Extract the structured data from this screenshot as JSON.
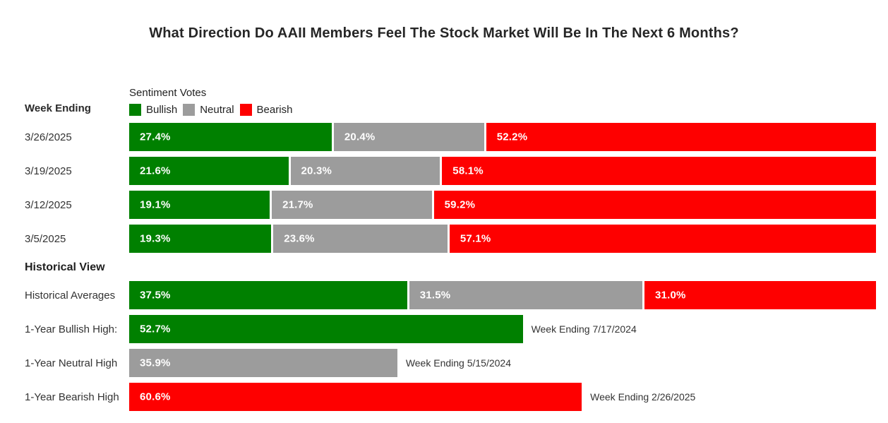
{
  "labels": {
    "week_ending": "Week Ending"
  },
  "legend": {
    "title": "Sentiment Votes"
  },
  "colors": {
    "bullish": "#008000",
    "neutral": "#9c9c9c",
    "bearish": "#fe0000",
    "background": "#ffffff",
    "bar_value_text": "#ffffff"
  },
  "chart_data": {
    "type": "bar",
    "orientation": "horizontal",
    "stacked": true,
    "title": "What Direction Do AAII Members Feel The Stock Market Will Be In The Next 6 Months?",
    "xlim": [
      0,
      100
    ],
    "unit": "%",
    "legend_position": "top-left",
    "grid": false,
    "categories": [
      "3/26/2025",
      "3/19/2025",
      "3/12/2025",
      "3/5/2025"
    ],
    "series": [
      {
        "name": "Bullish",
        "color": "#008000",
        "values": [
          27.4,
          21.6,
          19.1,
          19.3
        ],
        "labels": [
          "27.4%",
          "21.6%",
          "19.1%",
          "19.3%"
        ]
      },
      {
        "name": "Neutral",
        "color": "#9c9c9c",
        "values": [
          20.4,
          20.3,
          21.7,
          23.6
        ],
        "labels": [
          "20.4%",
          "20.3%",
          "21.7%",
          "23.6%"
        ]
      },
      {
        "name": "Bearish",
        "color": "#fe0000",
        "values": [
          52.2,
          58.1,
          59.2,
          57.1
        ],
        "labels": [
          "52.2%",
          "58.1%",
          "59.2%",
          "57.1%"
        ]
      }
    ],
    "historical_view": {
      "heading": "Historical View",
      "averages": {
        "label": "Historical Averages",
        "segments": [
          {
            "name": "Bullish",
            "color": "#008000",
            "value": 37.5,
            "label": "37.5%"
          },
          {
            "name": "Neutral",
            "color": "#9c9c9c",
            "value": 31.5,
            "label": "31.5%"
          },
          {
            "name": "Bearish",
            "color": "#fe0000",
            "value": 31.0,
            "label": "31.0%"
          }
        ]
      },
      "extremes": [
        {
          "label": "1-Year Bullish High:",
          "name": "Bullish",
          "color": "#008000",
          "value": 52.7,
          "value_label": "52.7%",
          "annotation": "Week Ending 7/17/2024"
        },
        {
          "label": "1-Year Neutral High",
          "name": "Neutral",
          "color": "#9c9c9c",
          "value": 35.9,
          "value_label": "35.9%",
          "annotation": "Week Ending 5/15/2024"
        },
        {
          "label": "1-Year Bearish High",
          "name": "Bearish",
          "color": "#fe0000",
          "value": 60.6,
          "value_label": "60.6%",
          "annotation": "Week Ending 2/26/2025"
        }
      ]
    }
  }
}
